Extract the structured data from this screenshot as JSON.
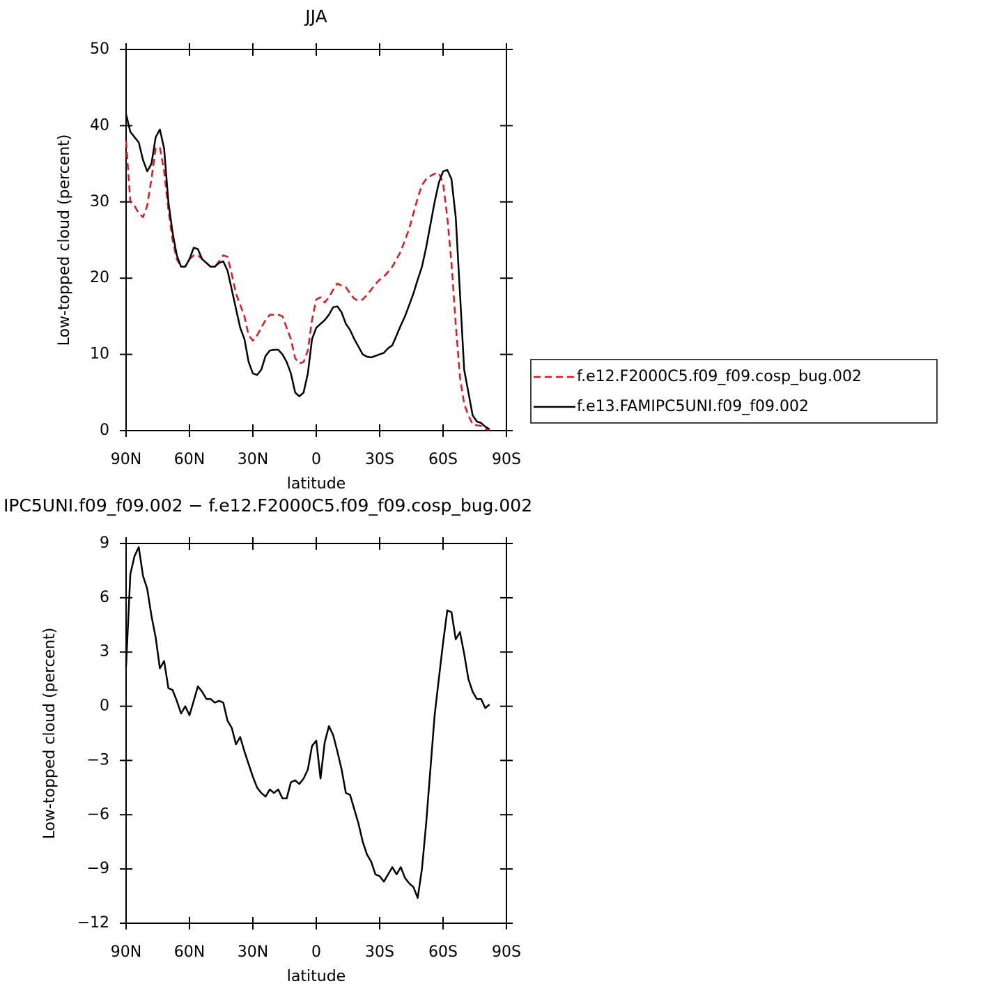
{
  "chart_data": [
    {
      "type": "line",
      "title": "JJA",
      "xlabel": "latitude",
      "ylabel": "Low-topped cloud (percent)",
      "x": [
        90,
        88,
        86,
        84,
        82,
        80,
        78,
        76,
        74,
        72,
        70,
        68,
        66,
        64,
        62,
        60,
        58,
        56,
        54,
        52,
        50,
        48,
        46,
        44,
        42,
        40,
        38,
        36,
        34,
        32,
        30,
        28,
        26,
        24,
        22,
        20,
        18,
        16,
        14,
        12,
        10,
        8,
        6,
        4,
        2,
        0,
        -2,
        -4,
        -6,
        -8,
        -10,
        -12,
        -14,
        -16,
        -18,
        -20,
        -22,
        -24,
        -26,
        -28,
        -30,
        -32,
        -34,
        -36,
        -38,
        -40,
        -42,
        -44,
        -46,
        -48,
        -50,
        -52,
        -54,
        -56,
        -58,
        -60,
        -62,
        -64,
        -66,
        -68,
        -70,
        -72,
        -74,
        -76,
        -78,
        -80,
        -82
      ],
      "series": [
        {
          "name": "f.e12.F2000C5.f09_f09.cosp_bug.002",
          "color": "#e8141c",
          "line_style": "dashed",
          "values": [
            38,
            30,
            29.5,
            28.5,
            28,
            29.5,
            33,
            37,
            37.2,
            34,
            29,
            25,
            22.5,
            21.5,
            21.5,
            22.5,
            23,
            23,
            22.5,
            22,
            21.5,
            21.5,
            22.2,
            23,
            22.8,
            20.5,
            18,
            16.5,
            15,
            12.5,
            11.8,
            12.5,
            13.5,
            14.5,
            15.2,
            15.2,
            15.2,
            15,
            13.5,
            12,
            9.5,
            8.8,
            9,
            10.5,
            14.5,
            17.2,
            17.5,
            16.8,
            17.5,
            18.5,
            19.3,
            19,
            18.8,
            18,
            17.3,
            17,
            17.2,
            17.8,
            18.5,
            19.2,
            19.8,
            20.2,
            20.8,
            21.5,
            22.5,
            23.5,
            25,
            26.5,
            28.5,
            30.5,
            32.2,
            33,
            33.4,
            33.7,
            33.8,
            32.5,
            28,
            22,
            14,
            7,
            3.5,
            2,
            0.8,
            0.7,
            0.6,
            0.2,
            0.1
          ]
        },
        {
          "name": "f.e13.FAMIPC5UNI.f09_f09.002",
          "color": "#000000",
          "line_style": "solid",
          "values": [
            41.5,
            39.2,
            38.5,
            37.8,
            35.5,
            34,
            35,
            38.5,
            39.5,
            37,
            30,
            26,
            23,
            21.5,
            21.5,
            22.5,
            24,
            23.8,
            22.5,
            22,
            21.5,
            21.5,
            22,
            22.2,
            21,
            18.5,
            16,
            13.5,
            12,
            9,
            7.5,
            7.3,
            8,
            9.8,
            10.5,
            10.6,
            10.6,
            10,
            9,
            7.5,
            5,
            4.5,
            5,
            7.5,
            12,
            13.5,
            14,
            14.5,
            15.2,
            16.2,
            16.3,
            15.5,
            14,
            13.2,
            12,
            11,
            10,
            9.7,
            9.6,
            9.8,
            10,
            10.2,
            10.8,
            11.2,
            12.5,
            13.8,
            15,
            16.5,
            18,
            19.8,
            21.5,
            24,
            27,
            30,
            32.5,
            34,
            34.2,
            33,
            28,
            18,
            8,
            5,
            2,
            1.2,
            1,
            0.5,
            0.2
          ]
        }
      ],
      "xlim": [
        90,
        -90
      ],
      "xticks": [
        {
          "value": 90,
          "label": "90N"
        },
        {
          "value": 60,
          "label": "60N"
        },
        {
          "value": 30,
          "label": "30N"
        },
        0,
        {
          "value": -30,
          "label": "30S"
        },
        {
          "value": -60,
          "label": "60S"
        },
        {
          "value": -90,
          "label": "90S"
        }
      ],
      "ylim": [
        0,
        50
      ],
      "yticks": [
        0,
        10,
        20,
        30,
        40,
        50
      ],
      "legend": "right"
    },
    {
      "type": "line",
      "title": "IPC5UNI.f09_f09.002 − f.e12.F2000C5.f09_f09.cosp_bug.002",
      "xlabel": "latitude",
      "ylabel": "Low-topped cloud (percent)",
      "x": [
        90,
        88,
        86,
        84,
        82,
        80,
        78,
        76,
        74,
        72,
        70,
        68,
        66,
        64,
        62,
        60,
        58,
        56,
        54,
        52,
        50,
        48,
        46,
        44,
        42,
        40,
        38,
        36,
        34,
        32,
        30,
        28,
        26,
        24,
        22,
        20,
        18,
        16,
        14,
        12,
        10,
        8,
        6,
        4,
        2,
        0,
        -2,
        -4,
        -6,
        -8,
        -10,
        -12,
        -14,
        -16,
        -18,
        -20,
        -22,
        -24,
        -26,
        -28,
        -30,
        -32,
        -34,
        -36,
        -38,
        -40,
        -42,
        -44,
        -46,
        -48,
        -50,
        -52,
        -54,
        -56,
        -58,
        -60,
        -62,
        -64,
        -66,
        -68,
        -70,
        -72,
        -74,
        -76,
        -78,
        -80,
        -82
      ],
      "series": [
        {
          "color": "#000000",
          "line_style": "solid",
          "values": [
            2.2,
            7.3,
            8.3,
            8.8,
            7.2,
            6.5,
            5,
            3.8,
            2.1,
            2.5,
            1,
            0.9,
            0.3,
            -0.4,
            0,
            -0.5,
            0.3,
            1.1,
            0.8,
            0.4,
            0.4,
            0.2,
            0.3,
            0.2,
            -0.8,
            -1.2,
            -2.1,
            -1.7,
            -2.5,
            -3.2,
            -3.9,
            -4.5,
            -4.8,
            -5,
            -4.6,
            -4.8,
            -4.6,
            -5.1,
            -5.1,
            -4.2,
            -4.1,
            -4.3,
            -4,
            -3.5,
            -2.2,
            -1.9,
            -4,
            -2,
            -1.1,
            -1.6,
            -2.5,
            -3.5,
            -4.8,
            -4.9,
            -5.7,
            -6.5,
            -7.5,
            -8.2,
            -8.6,
            -9.3,
            -9.4,
            -9.7,
            -9.3,
            -8.9,
            -9.3,
            -8.9,
            -9.5,
            -9.8,
            -10,
            -10.6,
            -9,
            -6.5,
            -3.5,
            -0.5,
            1.5,
            3.5,
            5.3,
            5.2,
            3.7,
            4.1,
            2.9,
            1.5,
            0.8,
            0.4,
            0.4,
            -0.1,
            0.1
          ]
        }
      ],
      "xlim": [
        90,
        -90
      ],
      "xticks": [
        {
          "value": 90,
          "label": "90N"
        },
        {
          "value": 60,
          "label": "60N"
        },
        {
          "value": 30,
          "label": "30N"
        },
        0,
        {
          "value": -30,
          "label": "30S"
        },
        {
          "value": -60,
          "label": "60S"
        },
        {
          "value": -90,
          "label": "90S"
        }
      ],
      "ylim": [
        -12,
        9
      ],
      "yticks": [
        -12,
        -9,
        -6,
        -3,
        0,
        3,
        6,
        9
      ]
    }
  ]
}
